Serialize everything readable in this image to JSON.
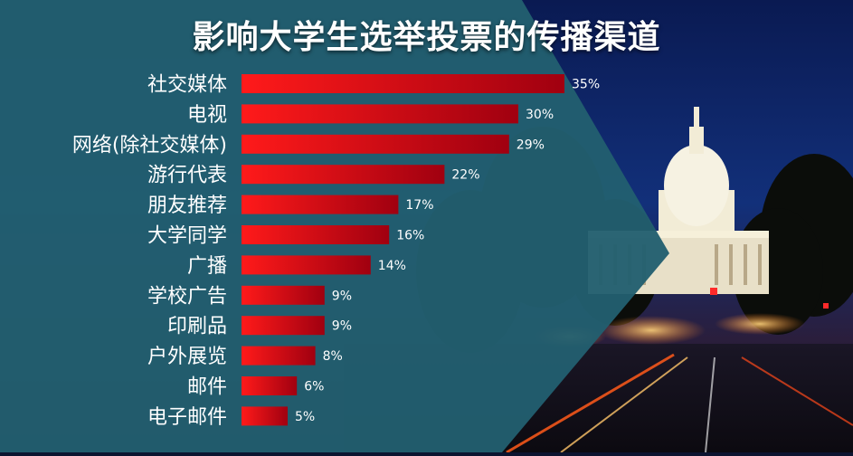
{
  "colors": {
    "panel": "#225f6f",
    "bar_start": "#ff1a1a",
    "bar_end": "#a00010",
    "text": "#ffffff",
    "sky": "#0b1e5a"
  },
  "chart_data": {
    "type": "bar",
    "orientation": "horizontal",
    "title": "影响大学生选举投票的传播渠道",
    "categories": [
      "社交媒体",
      "电视",
      "网络(除社交媒体)",
      "游行代表",
      "朋友推荐",
      "大学同学",
      "广播",
      "学校广告",
      "印刷品",
      "户外展览",
      "邮件",
      "电子邮件"
    ],
    "values": [
      35,
      30,
      29,
      22,
      17,
      16,
      14,
      9,
      9,
      8,
      6,
      5
    ],
    "value_labels": [
      "35%",
      "30%",
      "29%",
      "22%",
      "17%",
      "16%",
      "14%",
      "9%",
      "9%",
      "8%",
      "6%",
      "5%"
    ],
    "unit": "%",
    "xlim": [
      0,
      35
    ],
    "grid": false,
    "legend": "none"
  }
}
